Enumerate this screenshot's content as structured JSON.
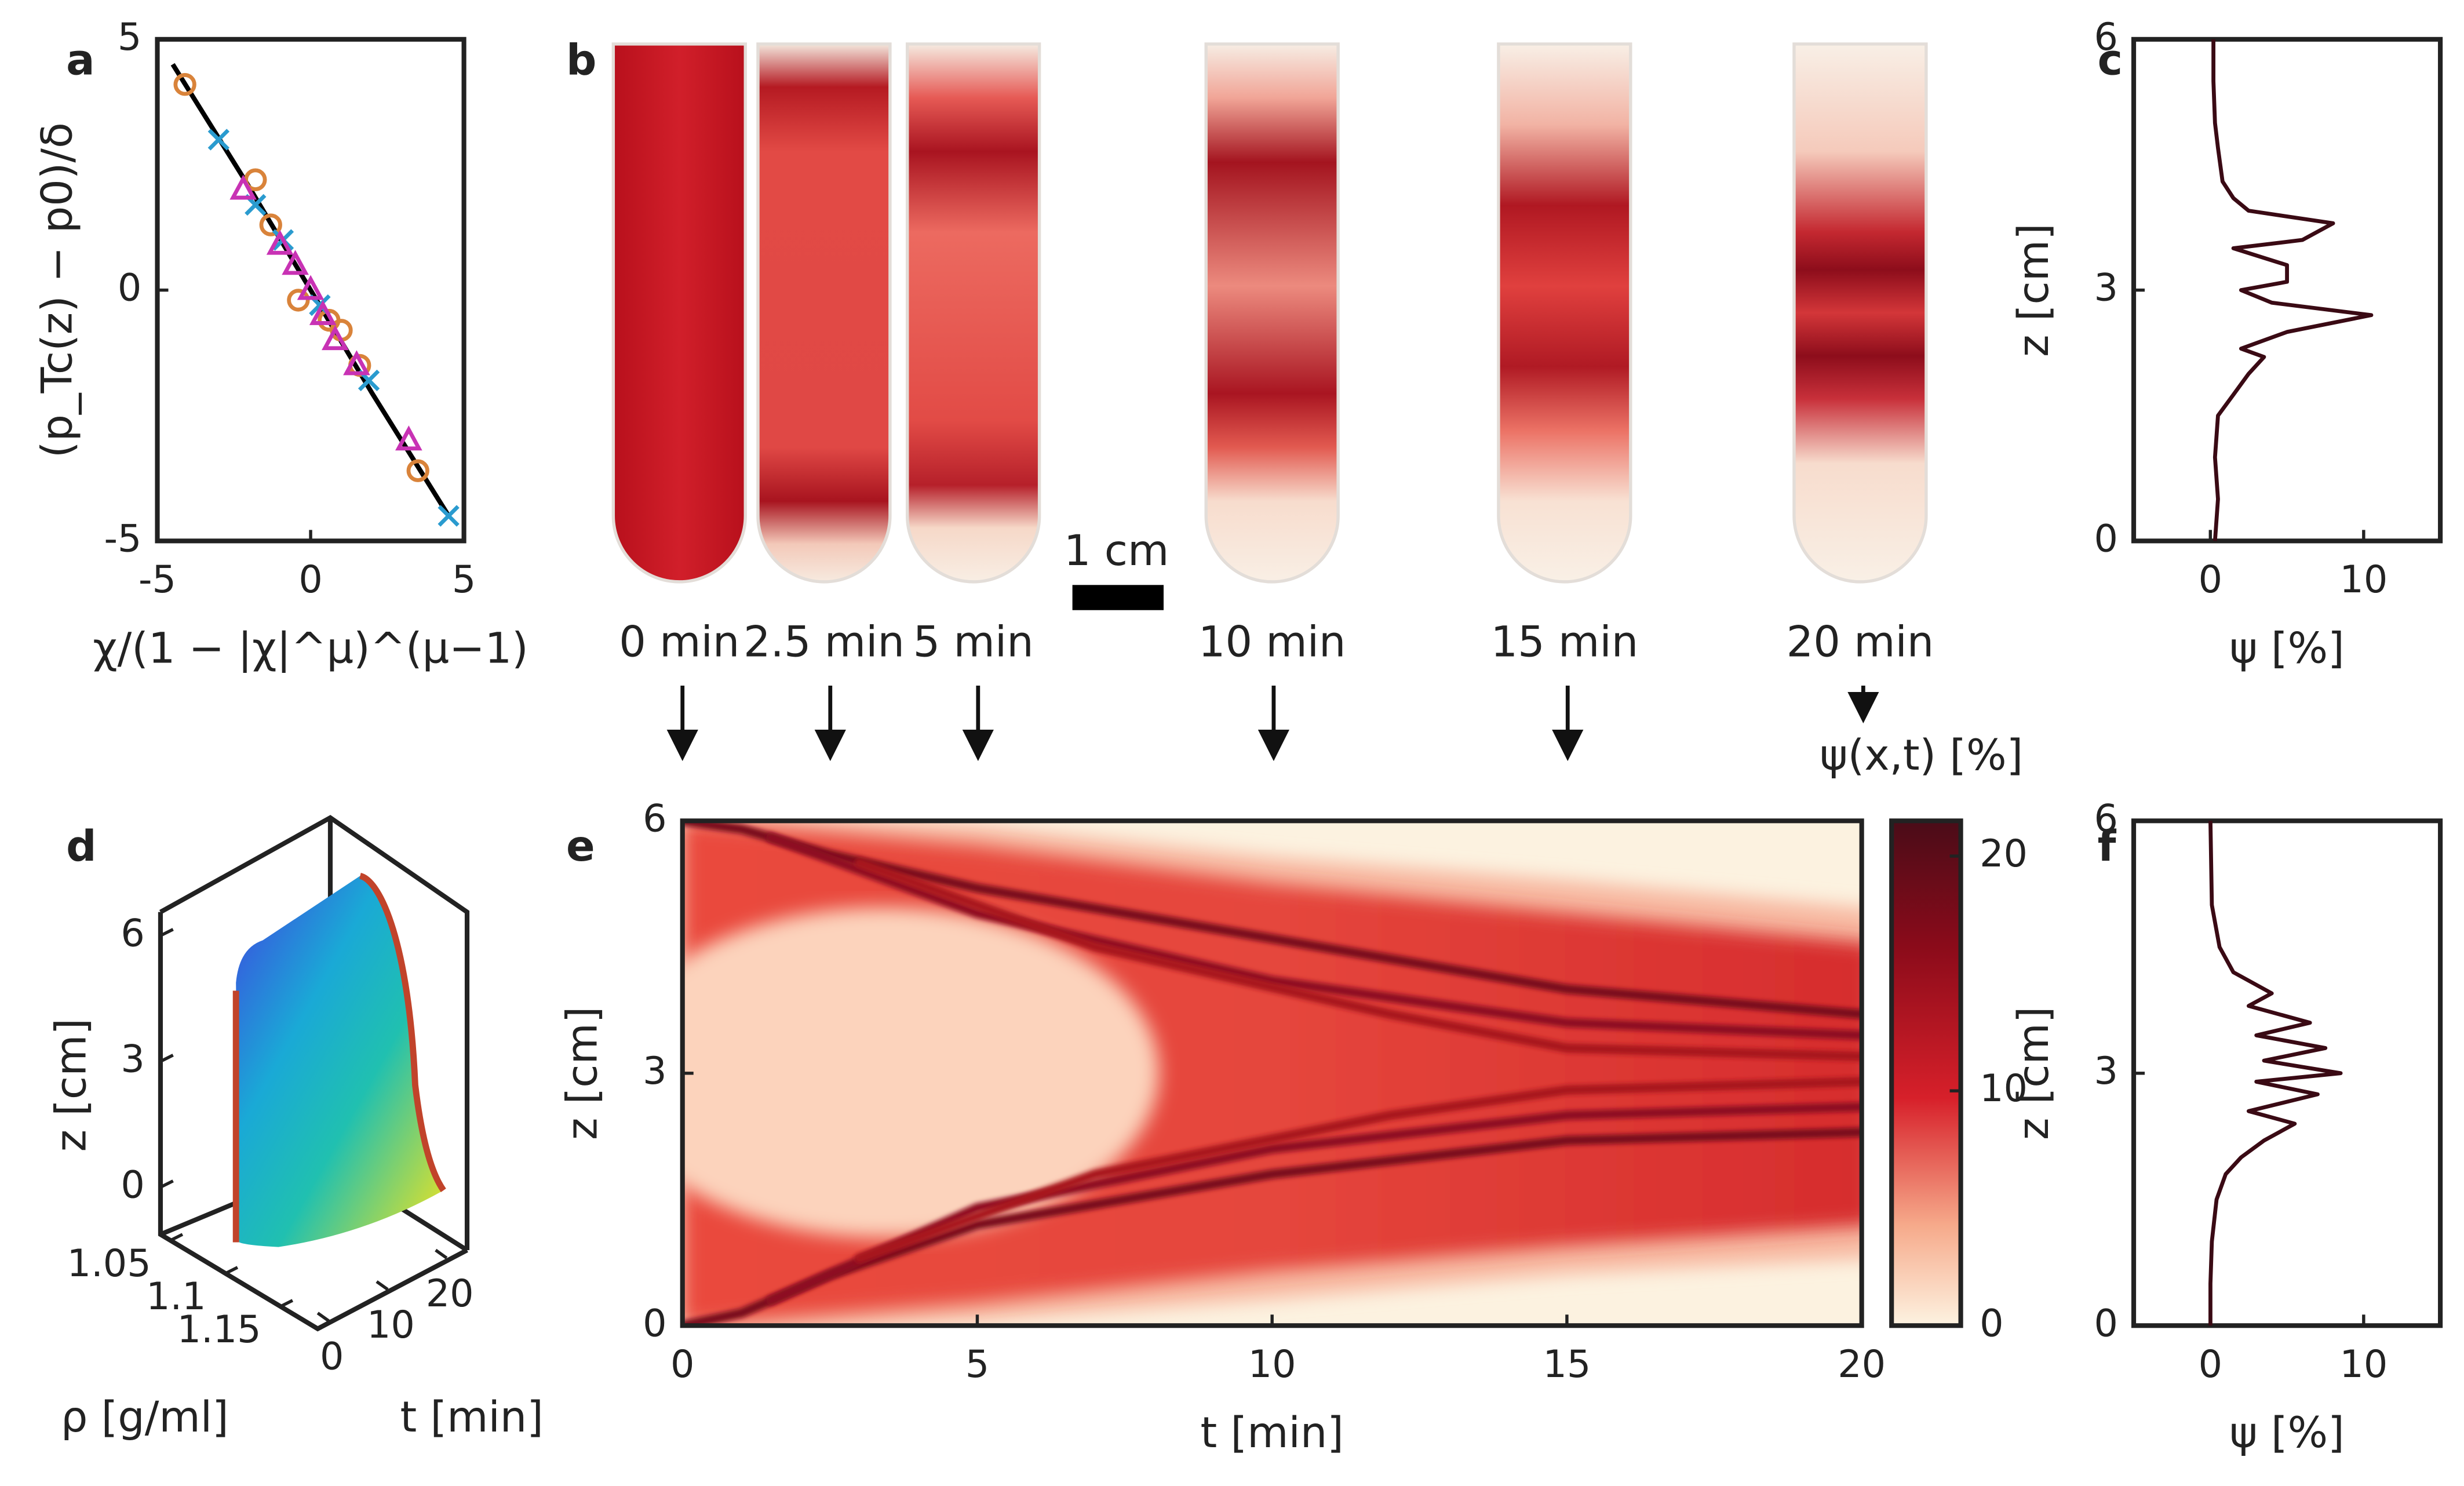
{
  "chart_data": [
    {
      "type": "scatter",
      "label": "a",
      "xlabel": "χ/(1 − |χ|^μ)^(μ−1)",
      "ylabel": "(p_Tc(z) − p0)/δ",
      "xlim": [
        -5,
        5
      ],
      "ylim": [
        -5,
        5
      ],
      "xticks": [
        -5,
        0,
        5
      ],
      "yticks": [
        -5,
        0,
        5
      ],
      "fit": {
        "x": [
          -4.5,
          -2,
          0,
          2,
          4.5
        ],
        "values": [
          4.5,
          2.05,
          0,
          -2.05,
          -4.5
        ],
        "color": "#000000"
      },
      "series": [
        {
          "marker": "o",
          "color": "#d9833a",
          "x": [
            -4.1,
            -1.8,
            -1.3,
            -0.4,
            0.6,
            1.0,
            1.6,
            3.5
          ],
          "values": [
            4.1,
            2.2,
            1.3,
            -0.2,
            -0.6,
            -0.8,
            -1.5,
            -3.6
          ]
        },
        {
          "marker": "x",
          "color": "#2a9bcf",
          "x": [
            -3.0,
            -1.8,
            -0.9,
            0.3,
            1.9,
            4.5
          ],
          "values": [
            3.0,
            1.7,
            1.0,
            -0.3,
            -1.8,
            -4.5
          ]
        },
        {
          "marker": "^",
          "color": "#c832b4",
          "x": [
            -2.2,
            -1.0,
            -0.5,
            0.0,
            0.4,
            0.8,
            1.5,
            3.2
          ],
          "values": [
            2.0,
            0.9,
            0.5,
            0.0,
            -0.5,
            -1.0,
            -1.5,
            -3.0
          ]
        }
      ]
    },
    {
      "type": "photo",
      "label": "b",
      "scale_bar": "1 cm",
      "times": [
        "0 min",
        "2.5 min",
        "5 min",
        "10 min",
        "15 min",
        "20 min"
      ]
    },
    {
      "type": "profile",
      "label": "c",
      "xlabel": "ψ [%]",
      "ylabel": "z [cm]",
      "color": "#3a0a14",
      "xlim": [
        -5,
        15
      ],
      "ylim": [
        0,
        6
      ],
      "xticks": [
        0,
        10
      ],
      "yticks": [
        0,
        3,
        6
      ],
      "z": [
        0,
        0.5,
        1,
        1.5,
        1.75,
        2,
        2.2,
        2.3,
        2.5,
        2.7,
        2.85,
        3,
        3.1,
        3.3,
        3.5,
        3.6,
        3.8,
        3.95,
        4.1,
        4.3,
        4.7,
        5,
        5.5,
        6
      ],
      "values": [
        0.3,
        0.5,
        0.3,
        0.5,
        1.5,
        2.5,
        3.5,
        2,
        5,
        10.5,
        4,
        2,
        5,
        5,
        1.5,
        6,
        8,
        2.5,
        1.5,
        0.8,
        0.5,
        0.3,
        0.2,
        0.2
      ]
    },
    {
      "type": "surface3d",
      "label": "d",
      "zlabel": "z [cm]",
      "rholabel": "ρ [g/ml]",
      "tlabel": "t [min]",
      "zlim": [
        0,
        6
      ],
      "zticks": [
        0,
        3,
        6
      ],
      "rholim": [
        1.05,
        1.15
      ],
      "rhoticks": [
        1.05,
        1.1,
        1.15
      ],
      "tlim": [
        0,
        20
      ],
      "tticks": [
        0,
        10,
        20
      ]
    },
    {
      "type": "heatmap",
      "label": "e",
      "xlabel": "t [min]",
      "ylabel": "z [cm]",
      "xlim": [
        0,
        20
      ],
      "ylim": [
        0,
        6
      ],
      "xticks": [
        0,
        5,
        10,
        15,
        20
      ],
      "yticks": [
        0,
        3,
        6
      ],
      "colorbar": {
        "label": "ψ(x,t) [%]",
        "lim": [
          0,
          21.5
        ],
        "ticks": [
          0,
          10,
          20
        ]
      },
      "series": [
        {
          "color": "#7a0a1c",
          "x": [
            0,
            1,
            2.5,
            5,
            10,
            15,
            20
          ],
          "values": [
            6,
            5.9,
            5.6,
            5.2,
            4.6,
            4.0,
            3.7
          ]
        },
        {
          "color": "#8e1020",
          "x": [
            1.5,
            5,
            10,
            15,
            20
          ],
          "values": [
            5.8,
            4.9,
            4.1,
            3.6,
            3.45
          ]
        },
        {
          "color": "#a8141f",
          "x": [
            3,
            7,
            12,
            15,
            20
          ],
          "values": [
            5.5,
            4.5,
            3.7,
            3.3,
            3.2
          ]
        },
        {
          "color": "#7a0a1c",
          "x": [
            0,
            1,
            2.5,
            5,
            10,
            15,
            20
          ],
          "values": [
            0,
            0.15,
            0.6,
            1.2,
            1.8,
            2.2,
            2.3
          ]
        },
        {
          "color": "#8e1020",
          "x": [
            1.5,
            5,
            10,
            15,
            20
          ],
          "values": [
            0.3,
            1.4,
            2.1,
            2.5,
            2.6
          ]
        },
        {
          "color": "#a8141f",
          "x": [
            3,
            7,
            12,
            15,
            20
          ],
          "values": [
            0.8,
            1.8,
            2.5,
            2.8,
            2.9
          ]
        }
      ]
    },
    {
      "type": "profile",
      "label": "f",
      "xlabel": "ψ [%]",
      "ylabel": "z [cm]",
      "color": "#3a0a14",
      "xlim": [
        -5,
        15
      ],
      "ylim": [
        0,
        6
      ],
      "xticks": [
        0,
        10
      ],
      "yticks": [
        0,
        3,
        6
      ],
      "z": [
        0,
        0.5,
        1,
        1.5,
        1.8,
        2,
        2.2,
        2.4,
        2.55,
        2.75,
        2.9,
        3,
        3.15,
        3.3,
        3.45,
        3.6,
        3.8,
        3.95,
        4.2,
        4.5,
        5,
        6
      ],
      "values": [
        0,
        0,
        0.1,
        0.4,
        1,
        2,
        3.5,
        5.5,
        2.5,
        7,
        3,
        8.5,
        3.5,
        7.5,
        3,
        6.5,
        2.5,
        4,
        1.5,
        0.6,
        0.1,
        0
      ]
    }
  ]
}
